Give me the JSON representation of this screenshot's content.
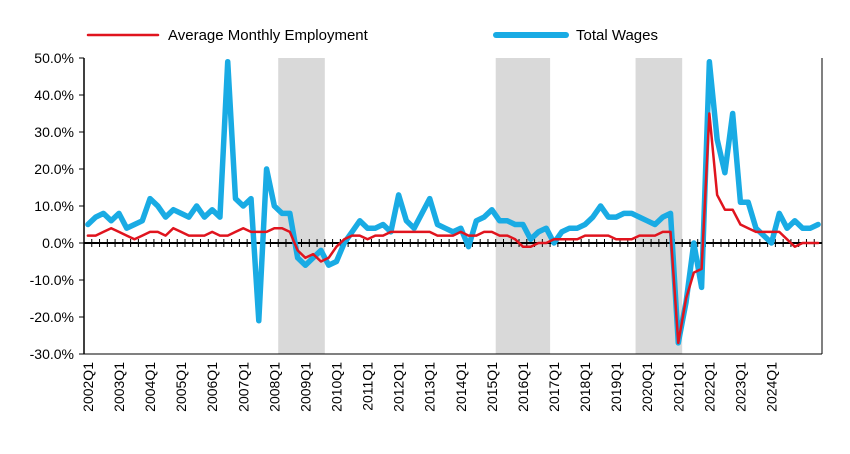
{
  "chart_data": {
    "type": "line",
    "title": "",
    "xlabel": "",
    "ylabel": "",
    "ylim": [
      -30,
      50
    ],
    "y_tick_values": [
      -30,
      -20,
      -10,
      0,
      10,
      20,
      30,
      40,
      50
    ],
    "y_tick_labels": [
      "-30.0%",
      "-20.0%",
      "-10.0%",
      "0.0%",
      "10.0%",
      "20.0%",
      "30.0%",
      "40.0%",
      "50.0%"
    ],
    "x_start_year": 2002,
    "x_tick_labels": [
      "2002Q1",
      "2003Q1",
      "2004Q1",
      "2005Q1",
      "2006Q1",
      "2007Q1",
      "2008Q1",
      "2009Q1",
      "2010Q1",
      "2011Q1",
      "2012Q1",
      "2013Q1",
      "2014Q1",
      "2015Q1",
      "2016Q1",
      "2017Q1",
      "2018Q1",
      "2019Q1",
      "2020Q1",
      "2021Q1",
      "2022Q1",
      "2023Q1",
      "2024Q1"
    ],
    "recession_shading": [
      {
        "start": "2008Q2",
        "end": "2009Q3"
      },
      {
        "start": "2015Q2",
        "end": "2016Q4"
      },
      {
        "start": "2019Q4",
        "end": "2021Q1"
      }
    ],
    "legend_position": "top",
    "series": [
      {
        "name": "Average Monthly Employment",
        "color": "#e0141e",
        "values": [
          2,
          2,
          3,
          4,
          3,
          2,
          1,
          2,
          3,
          3,
          2,
          4,
          3,
          2,
          2,
          2,
          3,
          2,
          2,
          3,
          4,
          3,
          3,
          3,
          4,
          4,
          3,
          -2,
          -4,
          -3,
          -5,
          -4,
          -1,
          1,
          2,
          2,
          1,
          2,
          2,
          3,
          3,
          3,
          3,
          3,
          3,
          2,
          2,
          2,
          3,
          2,
          2,
          3,
          3,
          2,
          2,
          1,
          -1,
          -1,
          0,
          0,
          1,
          1,
          1,
          1,
          2,
          2,
          2,
          2,
          1,
          1,
          1,
          2,
          2,
          2,
          3,
          3,
          -27,
          -15,
          -8,
          -7,
          35,
          13,
          9,
          9,
          5,
          4,
          3,
          3,
          3,
          3,
          1,
          -1,
          0,
          0,
          0
        ]
      },
      {
        "name": "Total Wages",
        "color": "#19abe4",
        "values": [
          5,
          7,
          8,
          6,
          8,
          4,
          5,
          6,
          12,
          10,
          7,
          9,
          8,
          7,
          10,
          7,
          9,
          7,
          49,
          12,
          10,
          12,
          -21,
          20,
          10,
          8,
          8,
          -4,
          -6,
          -4,
          -2,
          -6,
          -5,
          0,
          3,
          6,
          4,
          4,
          5,
          3,
          13,
          6,
          4,
          8,
          12,
          5,
          4,
          3,
          4,
          -1,
          6,
          7,
          9,
          6,
          6,
          5,
          5,
          1,
          3,
          4,
          0,
          3,
          4,
          4,
          5,
          7,
          10,
          7,
          7,
          8,
          8,
          7,
          6,
          5,
          7,
          8,
          -27,
          -16,
          0,
          -12,
          49,
          28,
          19,
          35,
          11,
          11,
          4,
          2,
          0,
          8,
          4,
          6,
          4,
          4,
          5
        ]
      }
    ]
  }
}
